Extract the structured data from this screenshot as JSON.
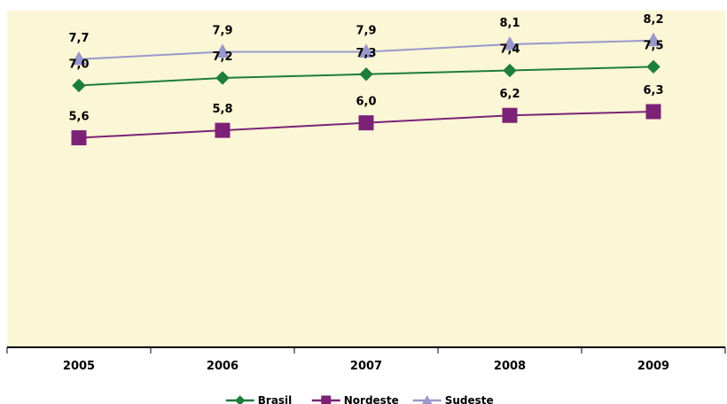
{
  "chart_data": {
    "type": "line",
    "title": "",
    "xlabel": "",
    "ylabel": "",
    "categories": [
      "2005",
      "2006",
      "2007",
      "2008",
      "2009"
    ],
    "ylim": [
      0,
      9
    ],
    "grid": false,
    "legend_position": "bottom",
    "series": [
      {
        "name": "Brasil",
        "values": [
          7.0,
          7.2,
          7.3,
          7.4,
          7.5
        ],
        "labels": [
          "7,0",
          "7,2",
          "7,3",
          "7,4",
          "7,5"
        ],
        "color": "#1e7d3c",
        "marker": "diamond"
      },
      {
        "name": "Nordeste",
        "values": [
          5.6,
          5.8,
          6.0,
          6.2,
          6.3
        ],
        "labels": [
          "5,6",
          "5,8",
          "6,0",
          "6,2",
          "6,3"
        ],
        "color": "#7b2277",
        "marker": "square"
      },
      {
        "name": "Sudeste",
        "values": [
          7.7,
          7.9,
          7.9,
          8.1,
          8.2
        ],
        "labels": [
          "7,7",
          "7,9",
          "7,9",
          "8,1",
          "8,2"
        ],
        "color": "#9999cc",
        "marker": "triangle"
      }
    ],
    "plot_background": "#fbf6d5",
    "axis_color": "#000000"
  }
}
